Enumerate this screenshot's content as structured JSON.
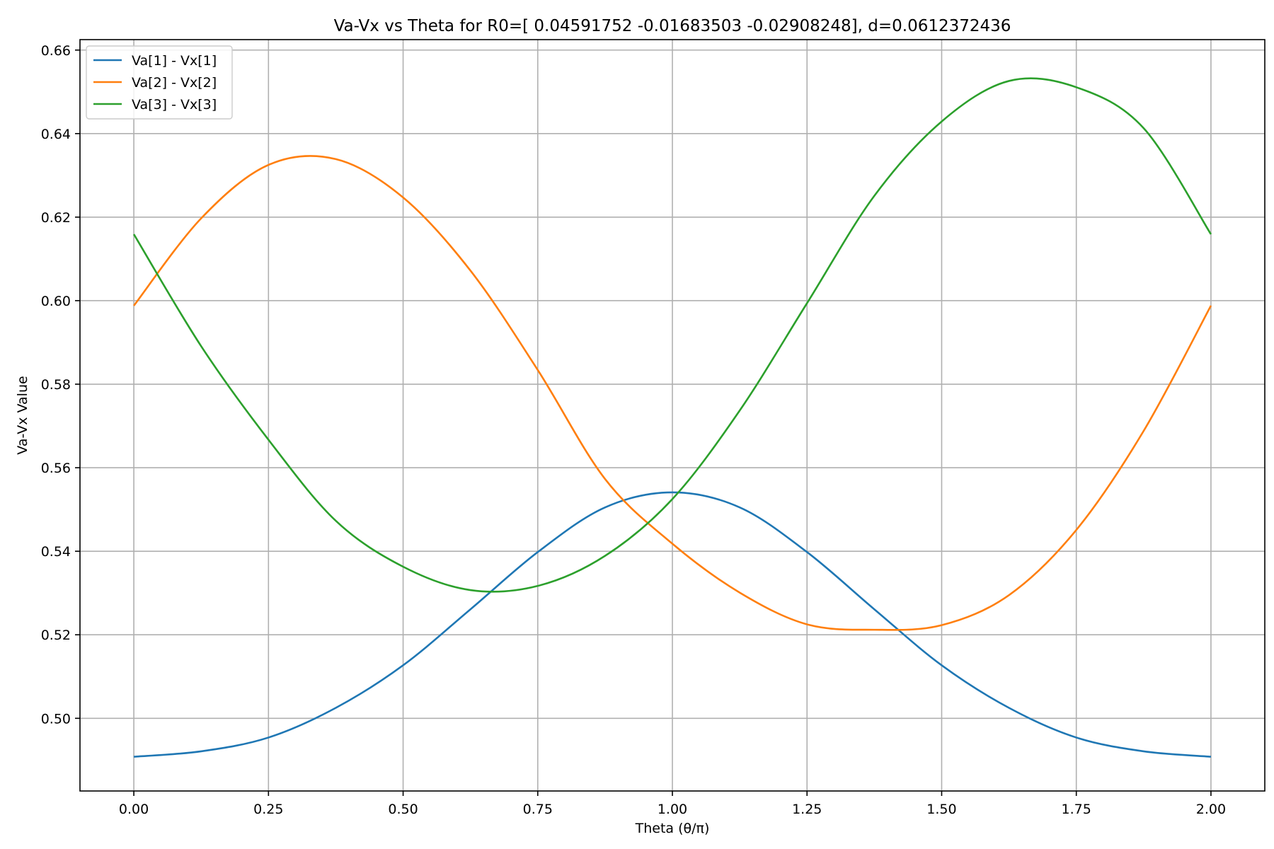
{
  "chart_data": {
    "type": "line",
    "title": "Va-Vx vs Theta for R0=[ 0.04591752 -0.01683503 -0.02908248], d=0.0612372436",
    "xlabel": "Theta (θ/π)",
    "ylabel": "Va-Vx Value",
    "xlim": [
      -0.1,
      2.1
    ],
    "ylim": [
      0.4826,
      0.6625
    ],
    "grid": true,
    "legend_position": "top-left",
    "x_ticks": [
      0.0,
      0.25,
      0.5,
      0.75,
      1.0,
      1.25,
      1.5,
      1.75,
      2.0
    ],
    "x_tick_labels": [
      "0.00",
      "0.25",
      "0.50",
      "0.75",
      "1.00",
      "1.25",
      "1.50",
      "1.75",
      "2.00"
    ],
    "y_ticks": [
      0.5,
      0.52,
      0.54,
      0.56,
      0.58,
      0.6,
      0.62,
      0.64,
      0.66
    ],
    "y_tick_labels": [
      "0.50",
      "0.52",
      "0.54",
      "0.56",
      "0.58",
      "0.60",
      "0.62",
      "0.64",
      "0.66"
    ],
    "x": [
      0.0,
      0.125,
      0.25,
      0.375,
      0.5,
      0.625,
      0.75,
      0.875,
      1.0,
      1.125,
      1.25,
      1.375,
      1.5,
      1.625,
      1.75,
      1.875,
      2.0
    ],
    "series": [
      {
        "name": "Va[1] - Vx[1]",
        "color": "#1f77b4",
        "values": [
          0.4908,
          0.4921,
          0.4954,
          0.5025,
          0.5127,
          0.5261,
          0.5398,
          0.5505,
          0.5541,
          0.5505,
          0.5398,
          0.5261,
          0.5127,
          0.5025,
          0.4954,
          0.4921,
          0.4908
        ]
      },
      {
        "name": "Va[2] - Vx[2]",
        "color": "#ff7f0e",
        "values": [
          0.5988,
          0.6197,
          0.6325,
          0.6339,
          0.6247,
          0.6072,
          0.5834,
          0.5573,
          0.5418,
          0.5301,
          0.5225,
          0.5212,
          0.5223,
          0.5295,
          0.5451,
          0.5688,
          0.5988
        ]
      },
      {
        "name": "Va[3] - Vx[3]",
        "color": "#2ca02c",
        "values": [
          0.6159,
          0.5891,
          0.5667,
          0.5473,
          0.5363,
          0.5307,
          0.5317,
          0.5389,
          0.5525,
          0.5737,
          0.5994,
          0.6251,
          0.6429,
          0.6526,
          0.6511,
          0.6413,
          0.6159
        ]
      }
    ]
  }
}
